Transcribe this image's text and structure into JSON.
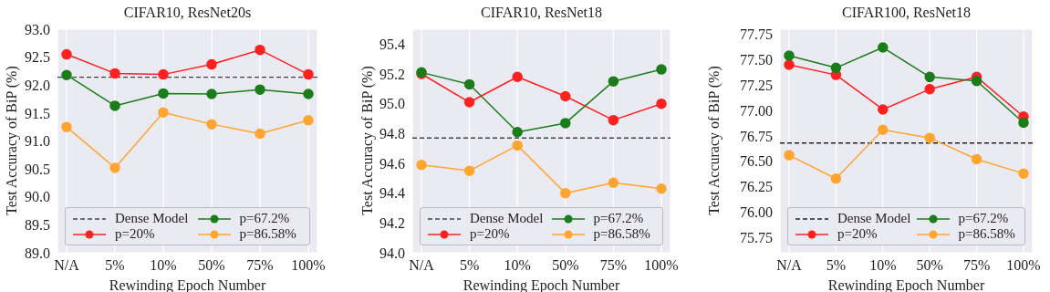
{
  "chart_data": [
    {
      "type": "line",
      "title": "CIFAR10, ResNet20s",
      "xlabel": "Rewinding Epoch Number",
      "ylabel": "Test Accuracy of BiP (%)",
      "categories": [
        "N/A",
        "5%",
        "10%",
        "50%",
        "75%",
        "100%"
      ],
      "series": [
        {
          "name": "p=20%",
          "color": "#ff2020",
          "values": [
            92.55,
            92.21,
            92.19,
            92.37,
            92.63,
            92.19
          ]
        },
        {
          "name": "p=67.2%",
          "color": "#1a7d1a",
          "values": [
            92.18,
            91.63,
            91.85,
            91.84,
            91.92,
            91.84
          ]
        },
        {
          "name": "p=86.58%",
          "color": "#ffa530",
          "values": [
            91.25,
            90.52,
            91.51,
            91.3,
            91.13,
            91.37
          ]
        }
      ],
      "ref_lines": [
        {
          "axis": "y",
          "value": 92.14,
          "label": "Dense Model",
          "color": "#444444",
          "line_style": "dashed"
        }
      ],
      "ylim": [
        89,
        93
      ],
      "yticks": [
        {
          "value": 89,
          "label": "89.0"
        },
        89.5,
        {
          "value": 90,
          "label": "90.0"
        },
        90.5,
        {
          "value": 91,
          "label": "91.0"
        },
        91.5,
        {
          "value": 92,
          "label": "92.0"
        },
        92.5,
        {
          "value": 93,
          "label": "93.0"
        }
      ],
      "grid": true,
      "legend": "bottom",
      "marker": "circle",
      "line_style": "solid"
    },
    {
      "type": "line",
      "title": "CIFAR10, ResNet18",
      "xlabel": "Rewinding Epoch Number",
      "ylabel": "Test Accuracy of BiP (%)",
      "categories": [
        "N/A",
        "5%",
        "10%",
        "50%",
        "75%",
        "100%"
      ],
      "series": [
        {
          "name": "p=20%",
          "color": "#ff2020",
          "values": [
            95.2,
            95.01,
            95.18,
            95.05,
            94.89,
            95.0
          ]
        },
        {
          "name": "p=67.2%",
          "color": "#1a7d1a",
          "values": [
            95.21,
            95.13,
            94.81,
            94.87,
            95.15,
            95.23
          ]
        },
        {
          "name": "p=86.58%",
          "color": "#ffa530",
          "values": [
            94.59,
            94.55,
            94.72,
            94.4,
            94.47,
            94.43
          ]
        }
      ],
      "ref_lines": [
        {
          "axis": "y",
          "value": 94.77,
          "label": "Dense Model",
          "color": "#444444",
          "line_style": "dashed"
        }
      ],
      "ylim": [
        94,
        95.5
      ],
      "yticks": [
        {
          "value": 94,
          "label": "94.0"
        },
        94.2,
        94.4,
        94.6,
        94.8,
        {
          "value": 95,
          "label": "95.0"
        },
        95.2,
        95.4
      ],
      "grid": true,
      "legend": "bottom",
      "marker": "circle",
      "line_style": "solid"
    },
    {
      "type": "line",
      "title": "CIFAR100, ResNet18",
      "xlabel": "Rewinding Epoch Number",
      "ylabel": "Test Accuracy of BiP (%)",
      "categories": [
        "N/A",
        "5%",
        "10%",
        "50%",
        "75%",
        "100%"
      ],
      "series": [
        {
          "name": "p=20%",
          "color": "#ff2020",
          "values": [
            77.45,
            77.35,
            77.01,
            77.21,
            77.33,
            76.94
          ]
        },
        {
          "name": "p=67.2%",
          "color": "#1a7d1a",
          "values": [
            77.54,
            77.42,
            77.62,
            77.33,
            77.29,
            76.88
          ]
        },
        {
          "name": "p=86.58%",
          "color": "#ffa530",
          "values": [
            76.56,
            76.33,
            76.81,
            76.73,
            76.52,
            76.38
          ]
        }
      ],
      "ref_lines": [
        {
          "axis": "y",
          "value": 76.68,
          "label": "Dense Model",
          "color": "#222222",
          "line_style": "dashed"
        }
      ],
      "ylim": [
        75.6,
        77.8
      ],
      "yticks": [
        75.75,
        {
          "value": 76,
          "label": "76.00"
        },
        76.25,
        {
          "value": 76.5,
          "label": "76.50"
        },
        76.75,
        {
          "value": 77,
          "label": "77.00"
        },
        77.25,
        {
          "value": 77.5,
          "label": "77.50"
        },
        77.75
      ],
      "grid": true,
      "legend": "bottom",
      "marker": "circle",
      "line_style": "solid"
    }
  ]
}
